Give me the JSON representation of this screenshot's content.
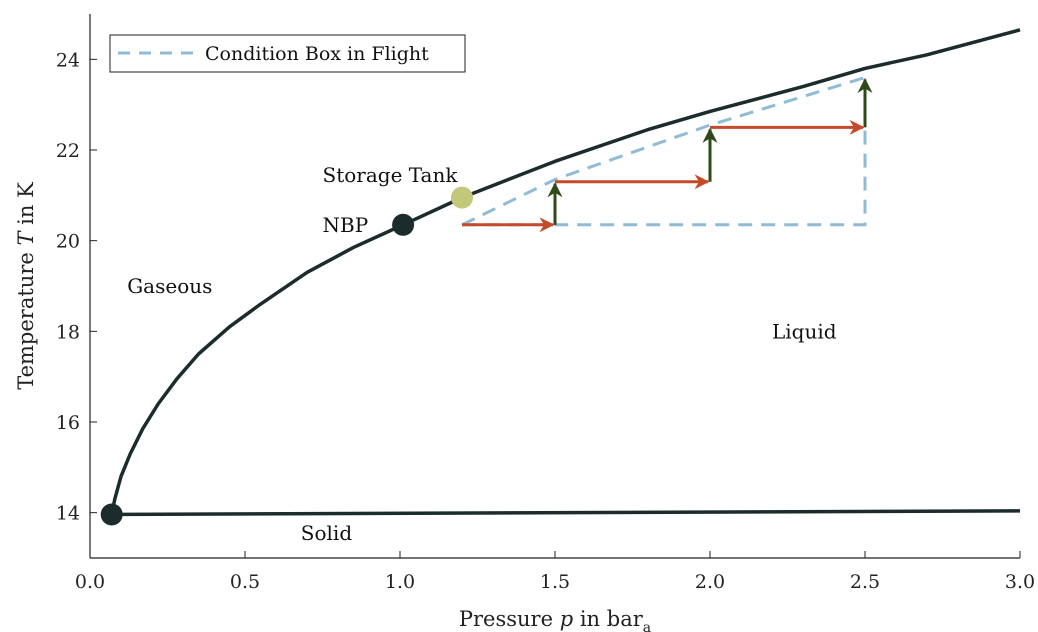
{
  "chart_data": {
    "type": "line",
    "xlabel": {
      "prefix": "Pressure ",
      "var": "p",
      "mid": " in bar",
      "sub": "a"
    },
    "ylabel": {
      "prefix": "Temperature ",
      "var": "T",
      "suffix": " in K"
    },
    "xlim": [
      0.0,
      3.0
    ],
    "ylim": [
      13.0,
      25.0
    ],
    "xticks": [
      0.0,
      0.5,
      1.0,
      1.5,
      2.0,
      2.5,
      3.0
    ],
    "xtick_labels": [
      "0.0",
      "0.5",
      "1.0",
      "1.5",
      "2.0",
      "2.5",
      "3.0"
    ],
    "yticks": [
      14,
      16,
      18,
      20,
      22,
      24
    ],
    "ytick_labels": [
      "14",
      "16",
      "18",
      "20",
      "22",
      "24"
    ],
    "grid": false,
    "legend": {
      "entries": [
        "Condition Box in Flight"
      ],
      "placement": "top-left"
    },
    "colors": {
      "curve": "#1c2b2b",
      "box": "#8fbcd4",
      "horizontal_arrow": "#c44a2b",
      "vertical_arrow": "#2f4a1a",
      "storage_point": "#c2c77a",
      "point": "#1c2b2b"
    },
    "series": [
      {
        "name": "vapor-pressure-curve",
        "x": [
          0.07,
          0.08,
          0.1,
          0.13,
          0.17,
          0.22,
          0.28,
          0.35,
          0.45,
          0.55,
          0.7,
          0.85,
          1.01,
          1.2,
          1.5,
          1.8,
          2.0,
          2.3,
          2.5,
          2.7,
          3.0
        ],
        "y": [
          13.96,
          14.3,
          14.8,
          15.3,
          15.85,
          16.4,
          16.95,
          17.5,
          18.1,
          18.6,
          19.3,
          19.85,
          20.35,
          20.95,
          21.75,
          22.45,
          22.85,
          23.4,
          23.8,
          24.1,
          24.65
        ]
      },
      {
        "name": "sublimation-melting-curve",
        "x": [
          0.07,
          3.0
        ],
        "y": [
          13.96,
          14.04
        ]
      },
      {
        "name": "Condition Box in Flight",
        "x": [
          1.2,
          1.5,
          2.0,
          2.5,
          2.5,
          1.2
        ],
        "y": [
          20.35,
          21.35,
          22.55,
          23.6,
          20.35,
          20.35
        ]
      }
    ],
    "points": [
      {
        "name": "triple-point",
        "x": 0.07,
        "y": 13.96
      },
      {
        "name": "NBP",
        "x": 1.01,
        "y": 20.35
      },
      {
        "name": "Storage Tank",
        "x": 1.2,
        "y": 20.95
      }
    ],
    "horizontal_arrows": [
      {
        "x0": 1.2,
        "x1": 1.5,
        "y": 20.35
      },
      {
        "x0": 1.5,
        "x1": 2.0,
        "y": 21.3
      },
      {
        "x0": 2.0,
        "x1": 2.5,
        "y": 22.5
      }
    ],
    "vertical_arrows": [
      {
        "x": 1.5,
        "y0": 20.35,
        "y1": 21.3
      },
      {
        "x": 2.0,
        "y0": 21.3,
        "y1": 22.5
      },
      {
        "x": 2.5,
        "y0": 22.5,
        "y1": 23.6
      }
    ],
    "annotations": [
      {
        "name": "label-storage-tank",
        "text": "Storage Tank",
        "x": 0.75,
        "y": 21.45
      },
      {
        "name": "label-nbp",
        "text": "NBP",
        "x": 0.75,
        "y": 20.35
      },
      {
        "name": "label-gaseous",
        "text": "Gaseous",
        "x": 0.12,
        "y": 19.0
      },
      {
        "name": "label-liquid",
        "text": "Liquid",
        "x": 2.2,
        "y": 18.0
      },
      {
        "name": "label-solid",
        "text": "Solid",
        "x": 0.68,
        "y": 13.55
      }
    ]
  }
}
